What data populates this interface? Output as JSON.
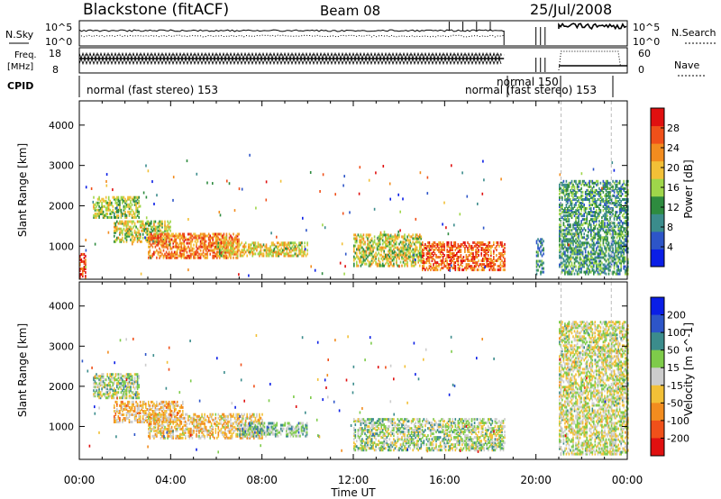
{
  "header": {
    "title": "Blackstone (fitACF)",
    "beam": "Beam 08",
    "date": "25/Jul/2008"
  },
  "panels": {
    "nsky": {
      "left_label": "N.Sky",
      "right_label": "N.Search",
      "left_ticks": [
        "10^5",
        "10^0"
      ],
      "right_ticks": [
        "10^5",
        "10^0"
      ]
    },
    "freq": {
      "left_label_top": "Freq.",
      "left_label_bottom": "[MHz]",
      "left_ticks": [
        "18",
        "8"
      ],
      "right_label": "Nave",
      "right_ticks": [
        "60",
        "0"
      ]
    },
    "cpid": {
      "label": "CPID",
      "segments": [
        {
          "text": "normal (fast stereo) 153",
          "start": 0.0,
          "end": 18.6
        },
        {
          "text": "normal 150",
          "start": 18.6,
          "end": 21.0
        },
        {
          "text": "normal (fast stereo) 153",
          "start": 21.0,
          "end": 24.0
        }
      ]
    }
  },
  "chart_data": [
    {
      "type": "heatmap",
      "name": "power",
      "xlabel": "",
      "ylabel": "Slant Range [km]",
      "xlim": [
        0,
        24
      ],
      "ylim": [
        180,
        4600
      ],
      "yticks": [
        1000,
        2000,
        3000,
        4000
      ],
      "colorbar": {
        "label": "Power [dB]",
        "ticks": [
          4,
          8,
          12,
          16,
          20,
          24,
          28
        ],
        "range": [
          0,
          32
        ],
        "colors": [
          "#0a1ee6",
          "#2d55c8",
          "#3b8c8c",
          "#2e8b3f",
          "#9fd64a",
          "#f2c037",
          "#f28c1f",
          "#f0501a",
          "#e01010"
        ]
      },
      "regions": [
        {
          "t0": 0.0,
          "t1": 0.3,
          "r0": 200,
          "r1": 800,
          "level": 0.85
        },
        {
          "t0": 0.6,
          "t1": 2.6,
          "r0": 1700,
          "r1": 2200,
          "level": 0.5
        },
        {
          "t0": 1.5,
          "t1": 4.0,
          "r0": 1100,
          "r1": 1600,
          "level": 0.55
        },
        {
          "t0": 3.0,
          "t1": 7.0,
          "r0": 700,
          "r1": 1300,
          "level": 0.75
        },
        {
          "t0": 6.0,
          "t1": 10.0,
          "r0": 750,
          "r1": 1100,
          "level": 0.6
        },
        {
          "t0": 12.0,
          "t1": 15.0,
          "r0": 500,
          "r1": 1300,
          "level": 0.55
        },
        {
          "t0": 15.0,
          "t1": 18.6,
          "r0": 400,
          "r1": 1100,
          "level": 0.8
        },
        {
          "t0": 20.0,
          "t1": 20.3,
          "r0": 300,
          "r1": 1200,
          "level": 0.3
        },
        {
          "t0": 21.0,
          "t1": 24.0,
          "r0": 300,
          "r1": 2600,
          "level": 0.35
        }
      ]
    },
    {
      "type": "heatmap",
      "name": "velocity",
      "xlabel": "Time UT",
      "ylabel": "Slant Range [km]",
      "xlim": [
        0,
        24
      ],
      "ylim": [
        180,
        4600
      ],
      "yticks": [
        1000,
        2000,
        3000,
        4000
      ],
      "xticks": [
        "00:00",
        "04:00",
        "08:00",
        "12:00",
        "16:00",
        "20:00",
        "00:00"
      ],
      "colorbar": {
        "label": "Velocity [m s^-1]",
        "ticks": [
          200,
          100,
          50,
          15,
          -15,
          -50,
          -100,
          -200
        ],
        "colors": [
          "#0a1ee6",
          "#2d55c8",
          "#3b8c8c",
          "#7ecb4a",
          "#cccccc",
          "#f2c037",
          "#f28c1f",
          "#f0501a",
          "#e01010"
        ]
      },
      "regions": [
        {
          "t0": 0.6,
          "t1": 2.6,
          "r0": 1700,
          "r1": 2300,
          "level": 0.45
        },
        {
          "t0": 1.5,
          "t1": 4.5,
          "r0": 1100,
          "r1": 1600,
          "level": 0.62
        },
        {
          "t0": 3.0,
          "t1": 8.0,
          "r0": 700,
          "r1": 1300,
          "level": 0.6
        },
        {
          "t0": 7.0,
          "t1": 10.0,
          "r0": 750,
          "r1": 1100,
          "level": 0.38
        },
        {
          "t0": 12.0,
          "t1": 18.6,
          "r0": 400,
          "r1": 1200,
          "level": 0.45
        },
        {
          "t0": 21.0,
          "t1": 24.0,
          "r0": 300,
          "r1": 3600,
          "level": 0.5
        }
      ]
    }
  ]
}
